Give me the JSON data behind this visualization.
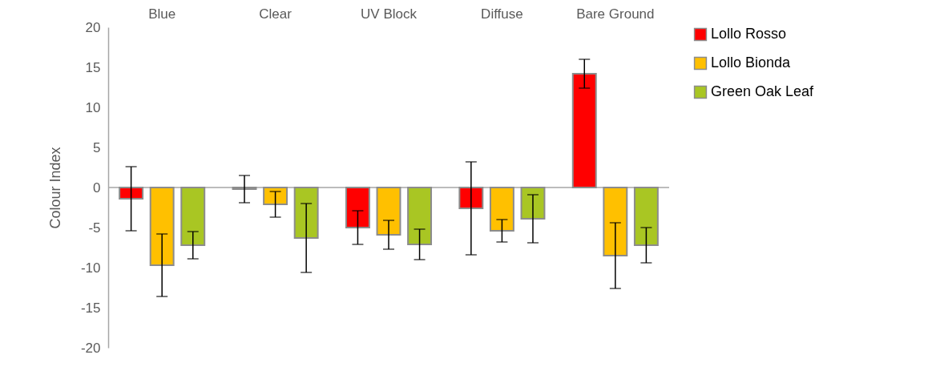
{
  "chart_data": {
    "type": "bar",
    "ylabel": "Colour Index",
    "categories": [
      "Blue",
      "Clear",
      "UV Block",
      "Diffuse",
      "Bare Ground"
    ],
    "series": [
      {
        "name": "Lollo Rosso",
        "color": "#ff0000",
        "values": [
          -1.4,
          -0.2,
          -5.0,
          -2.6,
          14.2
        ],
        "errors": [
          4.0,
          1.7,
          2.1,
          5.8,
          1.8
        ]
      },
      {
        "name": "Lollo Bionda",
        "color": "#ffc000",
        "values": [
          -9.7,
          -2.1,
          -5.9,
          -5.4,
          -8.5
        ],
        "errors": [
          3.9,
          1.6,
          1.8,
          1.4,
          4.1
        ]
      },
      {
        "name": "Green Oak Leaf",
        "color": "#a9c623",
        "values": [
          -7.2,
          -6.3,
          -7.1,
          -3.9,
          -7.2
        ],
        "errors": [
          1.7,
          4.3,
          1.9,
          3.0,
          2.2
        ]
      }
    ],
    "ylim": [
      -20,
      20
    ],
    "yticks": [
      -20,
      -15,
      -10,
      -5,
      0,
      5,
      10,
      15,
      20
    ],
    "ref_lines": [
      {
        "axis": "y",
        "value": 0,
        "color": "#a6a6a6"
      }
    ],
    "grid": false,
    "legend": "right"
  }
}
